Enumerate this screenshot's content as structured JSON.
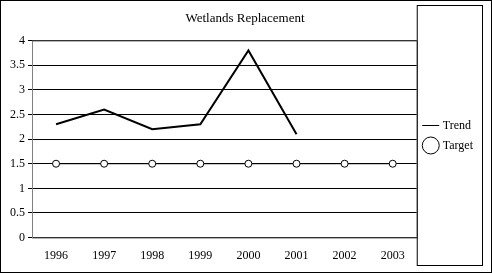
{
  "chart_data": {
    "type": "line",
    "title": "Wetlands Replacement",
    "categories": [
      "1996",
      "1997",
      "1998",
      "1999",
      "2000",
      "2001",
      "2002",
      "2003"
    ],
    "series": [
      {
        "name": "Trend",
        "color": "#000000",
        "marker": "none",
        "line_style": "solid",
        "values": [
          2.3,
          2.6,
          2.2,
          2.3,
          3.8,
          2.1,
          null,
          null
        ]
      },
      {
        "name": "Target",
        "color": "#000000",
        "marker": "circle",
        "line_style": "solid",
        "values": [
          1.5,
          1.5,
          1.5,
          1.5,
          1.5,
          1.5,
          1.5,
          1.5
        ]
      }
    ],
    "ylim": [
      0,
      4
    ],
    "yticks": [
      0,
      0.5,
      1,
      1.5,
      2,
      2.5,
      3,
      3.5,
      4
    ],
    "grid": true,
    "legend": "right"
  }
}
